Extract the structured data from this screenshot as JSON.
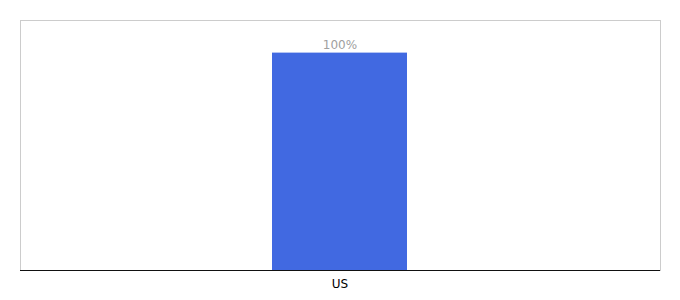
{
  "chart_data": {
    "type": "bar",
    "categories": [
      "US"
    ],
    "values": [
      100
    ],
    "value_labels": [
      "100%"
    ],
    "color": "#4169E1",
    "ylim": [
      0,
      115
    ],
    "data_labels": true,
    "tick_labels": "x"
  }
}
